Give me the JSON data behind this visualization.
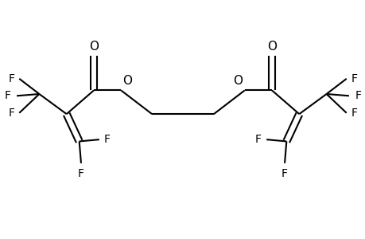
{
  "bg_color": "#ffffff",
  "line_color": "#000000",
  "text_color": "#000000",
  "font_size": 10,
  "line_width": 1.5,
  "figsize": [
    4.6,
    3.0
  ],
  "dpi": 100,
  "xlim": [
    0,
    10
  ],
  "ylim": [
    0,
    6
  ]
}
